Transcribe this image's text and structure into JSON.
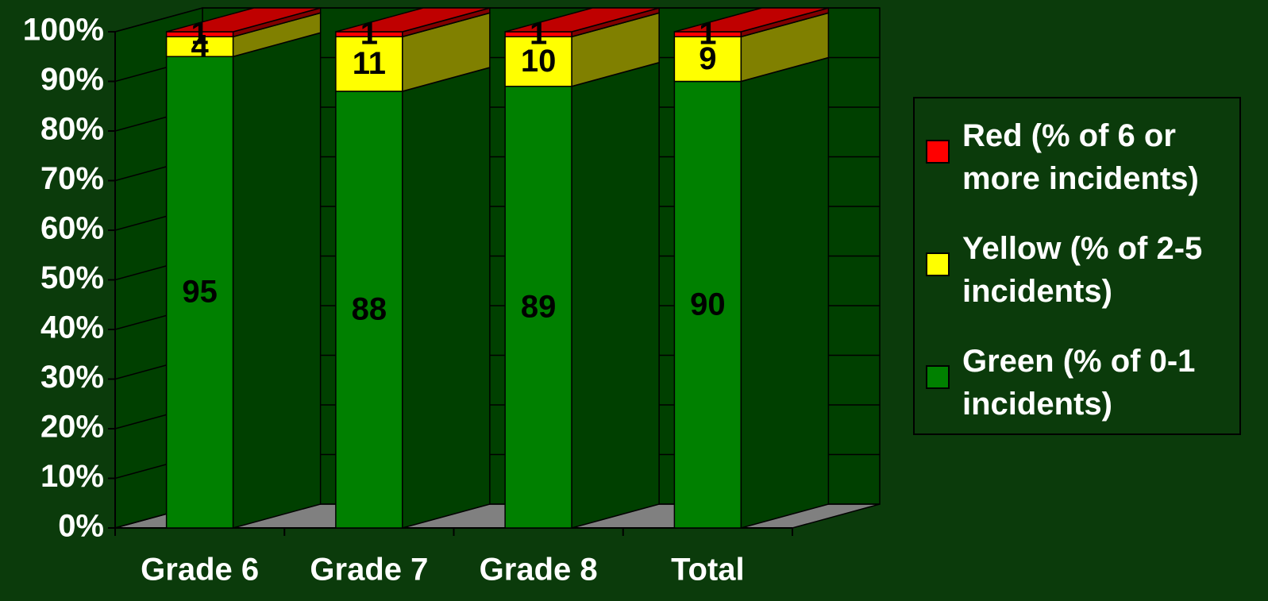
{
  "chart_data": {
    "type": "bar3d_stacked",
    "categories": [
      "Grade 6",
      "Grade 7",
      "Grade 8",
      "Total"
    ],
    "series": [
      {
        "name": "Red (% of 6 or more incidents)",
        "color": "#ff0000",
        "values": [
          1,
          1,
          1,
          1
        ]
      },
      {
        "name": "Yellow (% of 2-5 incidents)",
        "color": "#ffff00",
        "values": [
          4,
          11,
          10,
          9
        ]
      },
      {
        "name": "Green (% of 0-1 incidents)",
        "color": "#008000",
        "values": [
          95,
          88,
          89,
          90
        ]
      }
    ],
    "ylim": [
      0,
      100
    ],
    "yticks": [
      {
        "value": 0,
        "label": "0%"
      },
      {
        "value": 10,
        "label": "10%"
      },
      {
        "value": 20,
        "label": "20%"
      },
      {
        "value": 30,
        "label": "30%"
      },
      {
        "value": 40,
        "label": "40%"
      },
      {
        "value": 50,
        "label": "50%"
      },
      {
        "value": 60,
        "label": "60%"
      },
      {
        "value": 70,
        "label": "70%"
      },
      {
        "value": 80,
        "label": "80%"
      },
      {
        "value": 90,
        "label": "90%"
      },
      {
        "value": 100,
        "label": "100%"
      }
    ],
    "grid": true,
    "legend": "right"
  }
}
